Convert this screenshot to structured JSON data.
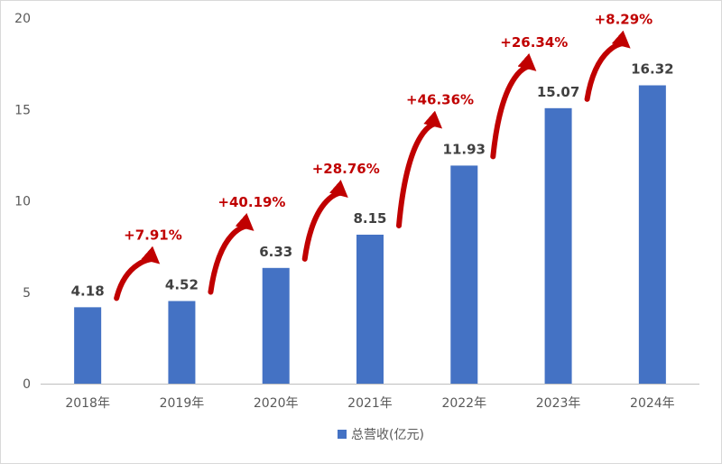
{
  "chart_data": {
    "type": "bar",
    "categories": [
      "2018年",
      "2019年",
      "2020年",
      "2021年",
      "2022年",
      "2023年",
      "2024年"
    ],
    "series": [
      {
        "name": "总营收(亿元)",
        "values": [
          4.18,
          4.52,
          6.33,
          8.15,
          11.93,
          15.07,
          16.32
        ]
      }
    ],
    "growth_labels": [
      "+7.91%",
      "+40.19%",
      "+28.76%",
      "+46.36%",
      "+26.34%",
      "+8.29%"
    ],
    "ylim": [
      0,
      20
    ],
    "yticks": [
      0,
      5,
      10,
      15,
      20
    ],
    "grid": false,
    "legend_position": "bottom",
    "colors": {
      "bar": "#4472c4",
      "growth": "#c00000",
      "arrow": "#c00000"
    }
  }
}
